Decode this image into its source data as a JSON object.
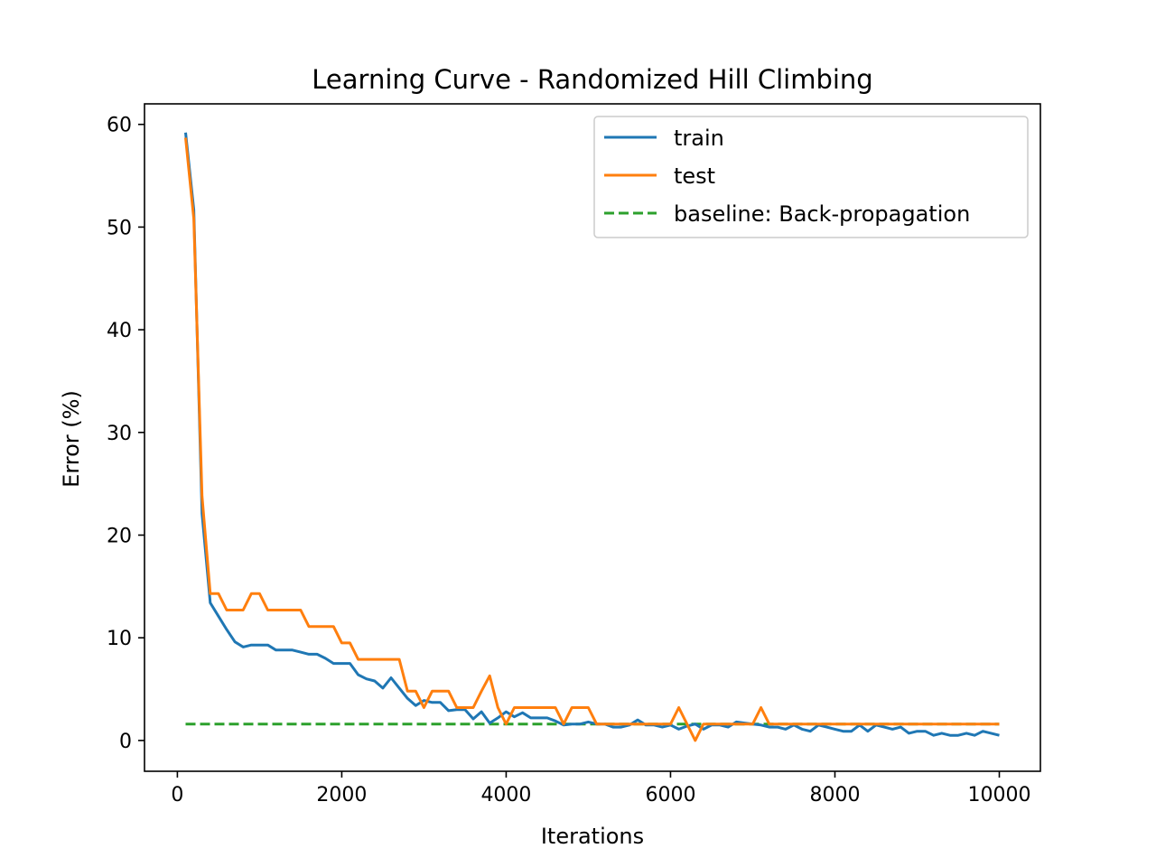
{
  "chart_data": {
    "type": "line",
    "title": "Learning Curve - Randomized Hill Climbing",
    "xlabel": "Iterations",
    "ylabel": "Error (%)",
    "xlim": [
      -400,
      10500
    ],
    "ylim": [
      -3,
      62
    ],
    "xticks": [
      0,
      2000,
      4000,
      6000,
      8000,
      10000
    ],
    "yticks": [
      0,
      10,
      20,
      30,
      40,
      50,
      60
    ],
    "legend_position": "top-right",
    "series": [
      {
        "name": "train",
        "color": "#1f77b4",
        "style": "solid",
        "x": [
          100,
          200,
          300,
          400,
          500,
          600,
          700,
          800,
          900,
          1000,
          1100,
          1200,
          1300,
          1400,
          1500,
          1600,
          1700,
          1800,
          1900,
          2000,
          2100,
          2200,
          2300,
          2400,
          2500,
          2600,
          2700,
          2800,
          2900,
          3000,
          3100,
          3200,
          3300,
          3400,
          3500,
          3600,
          3700,
          3800,
          3900,
          4000,
          4100,
          4200,
          4300,
          4400,
          4500,
          4600,
          4700,
          4800,
          4900,
          5000,
          5100,
          5200,
          5300,
          5400,
          5500,
          5600,
          5700,
          5800,
          5900,
          6000,
          6100,
          6200,
          6300,
          6400,
          6500,
          6600,
          6700,
          6800,
          6900,
          7000,
          7100,
          7200,
          7300,
          7400,
          7500,
          7600,
          7700,
          7800,
          7900,
          8000,
          8100,
          8200,
          8300,
          8400,
          8500,
          8600,
          8700,
          8800,
          8900,
          9000,
          9100,
          9200,
          9300,
          9400,
          9500,
          9600,
          9700,
          9800,
          9900,
          10000
        ],
        "y": [
          59.2,
          51.7,
          22.1,
          13.4,
          12.1,
          10.8,
          9.6,
          9.1,
          9.3,
          9.3,
          9.3,
          8.8,
          8.8,
          8.8,
          8.6,
          8.4,
          8.4,
          8.0,
          7.5,
          7.5,
          7.5,
          6.4,
          6.0,
          5.8,
          5.1,
          6.1,
          5.1,
          4.1,
          3.4,
          3.9,
          3.7,
          3.7,
          2.9,
          3.0,
          3.0,
          2.1,
          2.8,
          1.7,
          2.2,
          2.8,
          2.3,
          2.7,
          2.2,
          2.2,
          2.2,
          1.9,
          1.5,
          1.6,
          1.6,
          1.8,
          1.6,
          1.6,
          1.3,
          1.3,
          1.5,
          2.0,
          1.5,
          1.5,
          1.3,
          1.5,
          1.1,
          1.4,
          1.6,
          1.1,
          1.5,
          1.5,
          1.3,
          1.8,
          1.7,
          1.6,
          1.5,
          1.3,
          1.3,
          1.1,
          1.5,
          1.1,
          0.9,
          1.5,
          1.3,
          1.1,
          0.9,
          0.9,
          1.5,
          0.9,
          1.5,
          1.3,
          1.1,
          1.3,
          0.7,
          0.9,
          0.9,
          0.5,
          0.7,
          0.5,
          0.5,
          0.7,
          0.5,
          0.9,
          0.7,
          0.5
        ]
      },
      {
        "name": "test",
        "color": "#ff7f0e",
        "style": "solid",
        "x": [
          100,
          200,
          300,
          400,
          500,
          600,
          700,
          800,
          900,
          1000,
          1100,
          1200,
          1300,
          1400,
          1500,
          1600,
          1700,
          1800,
          1900,
          2000,
          2100,
          2200,
          2300,
          2400,
          2500,
          2600,
          2700,
          2800,
          2900,
          3000,
          3100,
          3200,
          3300,
          3400,
          3500,
          3600,
          3700,
          3800,
          3900,
          4000,
          4100,
          4200,
          4300,
          4400,
          4500,
          4600,
          4700,
          4800,
          4900,
          5000,
          5100,
          5200,
          5300,
          5400,
          5500,
          5600,
          5700,
          5800,
          5900,
          6000,
          6100,
          6200,
          6300,
          6400,
          6500,
          6600,
          6700,
          6800,
          6900,
          7000,
          7100,
          7200,
          7300,
          7400,
          7500,
          7600,
          7700,
          7800,
          7900,
          8000,
          8100,
          8200,
          8300,
          8400,
          8500,
          8600,
          8700,
          8800,
          8900,
          9000,
          9100,
          9200,
          9300,
          9400,
          9500,
          9600,
          9700,
          9800,
          9900,
          10000
        ],
        "y": [
          58.7,
          50.8,
          23.8,
          14.3,
          14.3,
          12.7,
          12.7,
          12.7,
          14.3,
          14.3,
          12.7,
          12.7,
          12.7,
          12.7,
          12.7,
          11.1,
          11.1,
          11.1,
          11.1,
          9.5,
          9.5,
          7.9,
          7.9,
          7.9,
          7.9,
          7.9,
          7.9,
          4.8,
          4.8,
          3.2,
          4.8,
          4.8,
          4.8,
          3.2,
          3.2,
          3.2,
          4.8,
          6.3,
          3.2,
          1.6,
          3.2,
          3.2,
          3.2,
          3.2,
          3.2,
          3.2,
          1.6,
          3.2,
          3.2,
          3.2,
          1.6,
          1.6,
          1.6,
          1.6,
          1.6,
          1.6,
          1.6,
          1.6,
          1.6,
          1.6,
          3.2,
          1.6,
          0.0,
          1.6,
          1.6,
          1.6,
          1.6,
          1.6,
          1.6,
          1.6,
          3.2,
          1.6,
          1.6,
          1.6,
          1.6,
          1.6,
          1.6,
          1.6,
          1.6,
          1.6,
          1.6,
          1.6,
          1.6,
          1.6,
          1.6,
          1.6,
          1.6,
          1.6,
          1.6,
          1.6,
          1.6,
          1.6,
          1.6,
          1.6,
          1.6,
          1.6,
          1.6,
          1.6,
          1.6,
          1.6
        ]
      },
      {
        "name": "baseline: Back-propagation",
        "color": "#2ca02c",
        "style": "dashed",
        "x": [
          100,
          10000
        ],
        "y": [
          1.6,
          1.6
        ]
      }
    ]
  }
}
